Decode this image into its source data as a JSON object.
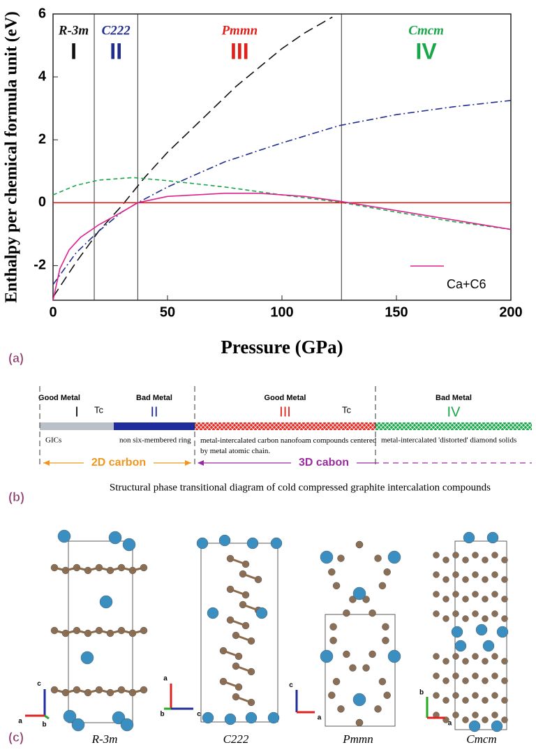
{
  "chart_data": {
    "type": "line",
    "xlabel": "Pressure (GPa)",
    "ylabel": "Enthalpy per chemical formula unit (eV)",
    "xlim": [
      0,
      200
    ],
    "ylim": [
      -3.1,
      6
    ],
    "xticks": [
      0,
      50,
      100,
      150,
      200
    ],
    "yticks": [
      -2,
      0,
      2,
      4,
      6
    ],
    "boundaries": [
      18,
      37,
      126
    ],
    "phases": [
      {
        "name": "R-3m",
        "numeral": "I",
        "color": "#111111"
      },
      {
        "name": "C222",
        "numeral": "II",
        "color": "#1f2d8c"
      },
      {
        "name": "Pmmn",
        "numeral": "III",
        "color": "#e0201b"
      },
      {
        "name": "Cmcm",
        "numeral": "IV",
        "color": "#1aa64a"
      }
    ],
    "series": [
      {
        "color": "#111111",
        "dash": "14 7",
        "x": [
          0,
          10,
          20,
          30,
          40,
          50,
          60,
          70,
          80,
          90,
          100,
          110,
          122
        ],
        "values": [
          -3.0,
          -1.9,
          -0.9,
          -0.1,
          0.8,
          1.6,
          2.3,
          3.0,
          3.7,
          4.3,
          4.9,
          5.4,
          5.9
        ]
      },
      {
        "color": "#1f2d8c",
        "dash": "10 4 2 4",
        "x": [
          0,
          10,
          20,
          30,
          37,
          50,
          75,
          100,
          125,
          150,
          175,
          200
        ],
        "values": [
          -2.6,
          -1.6,
          -0.9,
          -0.3,
          0,
          0.5,
          1.3,
          1.9,
          2.45,
          2.8,
          3.05,
          3.25
        ]
      },
      {
        "color": "#1aa64a",
        "dash": "6 4",
        "x": [
          0,
          10,
          20,
          35,
          50,
          75,
          100,
          125,
          150,
          175,
          200
        ],
        "values": [
          0.25,
          0.55,
          0.72,
          0.8,
          0.7,
          0.5,
          0.25,
          0.02,
          -0.3,
          -0.6,
          -0.85
        ]
      },
      {
        "color": "#e0201b",
        "dash": "none",
        "x": [
          0,
          200
        ],
        "values": [
          0,
          0
        ]
      },
      {
        "name": "Ca+C6",
        "color": "#e0208c",
        "dash": "none",
        "x": [
          0,
          3,
          7,
          12,
          20,
          30,
          37,
          50,
          75,
          90,
          110,
          125,
          150,
          175,
          200
        ],
        "values": [
          -3.1,
          -2.1,
          -1.5,
          -1.1,
          -0.7,
          -0.3,
          0,
          0.2,
          0.3,
          0.3,
          0.2,
          0.05,
          -0.25,
          -0.55,
          -0.85
        ]
      }
    ]
  },
  "panel_labels": [
    "(a)",
    "(b)",
    "(c)"
  ],
  "panel_b": {
    "segments": [
      {
        "conductivity": "Good Metal",
        "numeral": "I",
        "description": "GICs",
        "color": "#b9c0c8"
      },
      {
        "conductivity": "Bad Metal",
        "numeral": "II",
        "description": "non six-membered ring",
        "color": "#1f2d9c"
      },
      {
        "conductivity": "Good Metal",
        "numeral": "III",
        "description": "metal-intercalated carbon nanofoam compounds centered by metal atomic chain.",
        "color": "#e8261e"
      },
      {
        "conductivity": "Bad Metal",
        "numeral": "IV",
        "description": "metal-intercalated 'distorted' diamond solids",
        "color": "#1aa64a"
      }
    ],
    "tc_labels": [
      "Tc",
      "Tc"
    ],
    "arrows": [
      "2D carbon",
      "3D cabon"
    ],
    "caption": "Structural phase transitional diagram of cold compressed graphite intercalation compounds"
  },
  "panel_c": {
    "structures": [
      {
        "name": "R-3m",
        "axes": [
          "c",
          "a",
          "b"
        ]
      },
      {
        "name": "C222",
        "axes": [
          "a",
          "b",
          "c"
        ]
      },
      {
        "name": "Pmmn",
        "axes": [
          "c",
          "a"
        ]
      },
      {
        "name": "Cmcm",
        "axes": [
          "b",
          "a"
        ]
      }
    ]
  }
}
